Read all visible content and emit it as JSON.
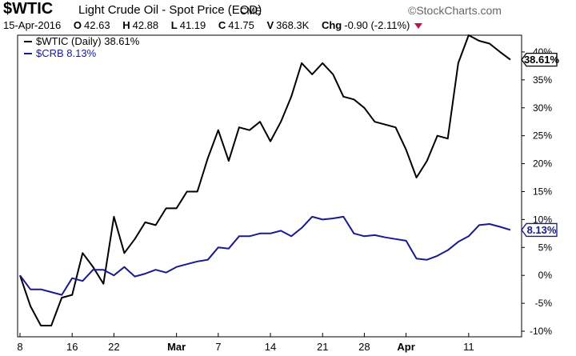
{
  "header": {
    "symbol": "$WTIC",
    "description": "Light Crude Oil - Spot Price (EOD)",
    "exchange": "CME",
    "brand": "©StockCharts.com",
    "date": "15-Apr-2016",
    "open_label": "O",
    "open": "42.63",
    "high_label": "H",
    "high": "42.88",
    "low_label": "L",
    "low": "41.19",
    "close_label": "C",
    "close": "41.75",
    "volume_label": "V",
    "volume": "368.3K",
    "change_label": "Chg",
    "change": "-0.90 (-2.11%)"
  },
  "chart_data": {
    "type": "line",
    "x": [
      "2016-02-08",
      "2016-02-09",
      "2016-02-10",
      "2016-02-11",
      "2016-02-12",
      "2016-02-16",
      "2016-02-17",
      "2016-02-18",
      "2016-02-19",
      "2016-02-22",
      "2016-02-23",
      "2016-02-24",
      "2016-02-25",
      "2016-02-26",
      "2016-02-29",
      "2016-03-01",
      "2016-03-02",
      "2016-03-03",
      "2016-03-04",
      "2016-03-07",
      "2016-03-08",
      "2016-03-09",
      "2016-03-10",
      "2016-03-11",
      "2016-03-14",
      "2016-03-15",
      "2016-03-16",
      "2016-03-17",
      "2016-03-18",
      "2016-03-21",
      "2016-03-22",
      "2016-03-23",
      "2016-03-24",
      "2016-03-28",
      "2016-03-29",
      "2016-03-30",
      "2016-03-31",
      "2016-04-01",
      "2016-04-04",
      "2016-04-05",
      "2016-04-06",
      "2016-04-07",
      "2016-04-08",
      "2016-04-11",
      "2016-04-12",
      "2016-04-13",
      "2016-04-14",
      "2016-04-15"
    ],
    "x_tick_labels": [
      {
        "date": "2016-02-08",
        "label": "8",
        "bold": false
      },
      {
        "date": "2016-02-16",
        "label": "16",
        "bold": false
      },
      {
        "date": "2016-02-22",
        "label": "22",
        "bold": false
      },
      {
        "date": "2016-03-01",
        "label": "Mar",
        "bold": true
      },
      {
        "date": "2016-03-07",
        "label": "7",
        "bold": false
      },
      {
        "date": "2016-03-14",
        "label": "14",
        "bold": false
      },
      {
        "date": "2016-03-21",
        "label": "21",
        "bold": false
      },
      {
        "date": "2016-03-28",
        "label": "28",
        "bold": false
      },
      {
        "date": "2016-04-01",
        "label": "Apr",
        "bold": true
      },
      {
        "date": "2016-04-11",
        "label": "11",
        "bold": false
      }
    ],
    "y_ticks": [
      -10,
      -5,
      0,
      5,
      10,
      15,
      20,
      25,
      30,
      35,
      40
    ],
    "y_tick_suffix": "%",
    "ylim": [
      -11,
      43
    ],
    "y_axis_side": "right",
    "grid": false,
    "legend_placement": "top-left",
    "series": [
      {
        "name": "$WTIC (Daily) 38.61%",
        "color": "#000000",
        "last_label": "38.61%",
        "values": [
          0,
          -5.5,
          -9,
          -9,
          -4,
          -3.5,
          4,
          1.5,
          -1.5,
          10.5,
          4,
          6.5,
          9.5,
          9,
          12,
          12,
          15,
          15,
          21,
          26,
          20.5,
          26.5,
          26,
          27.5,
          24,
          27.5,
          32,
          38,
          36,
          38,
          36,
          32,
          31.5,
          30,
          27.5,
          27,
          26.5,
          22.5,
          17.5,
          20.5,
          25,
          24.5,
          38,
          43,
          42,
          41.5,
          40,
          38.61
        ]
      },
      {
        "name": "$CRB 8.13%",
        "color": "#1a1a8c",
        "last_label": "8.13%",
        "values": [
          0,
          -2.5,
          -2.5,
          -3,
          -3.5,
          -0.5,
          -1,
          1,
          1,
          0,
          1.5,
          -0.2,
          0.3,
          1,
          0.5,
          1.5,
          2,
          2.5,
          2.8,
          5,
          4.8,
          7,
          7,
          7.5,
          7.5,
          8,
          7,
          8.5,
          10.5,
          10,
          10.2,
          10.5,
          7.5,
          7,
          7.2,
          6.8,
          6.5,
          6.2,
          3,
          2.8,
          3.5,
          4.5,
          6,
          7,
          9,
          9.2,
          8.7,
          8.13
        ]
      }
    ]
  }
}
